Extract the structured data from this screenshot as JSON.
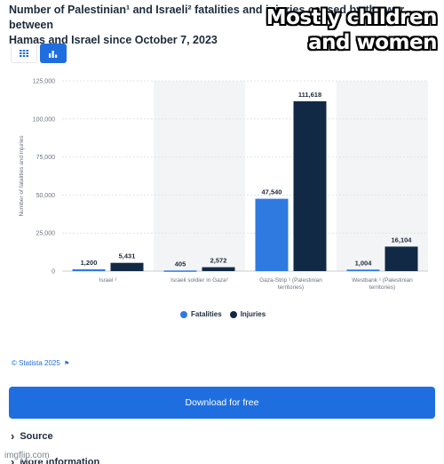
{
  "header": {
    "title_line1": "Number of Palestinian¹ and Israeli² fatalities and inju",
    "title_line1_tail": "ries caused by the war between",
    "title_line2": "Hamas and Israel since October 7, 2023",
    "meme_line1": "Mostly children",
    "meme_line2": "and women"
  },
  "view_toggle": {
    "table_icon": "grid-icon",
    "chart_icon": "bar-chart-icon",
    "active": "chart"
  },
  "legend": {
    "fatalities": "Fatalities",
    "injuries": "Injuries"
  },
  "credit": {
    "text": "© Statista 2025",
    "icon": "flag-icon"
  },
  "actions": {
    "download": "Download for free",
    "source": "Source",
    "more": "More information"
  },
  "watermark": "imgflip.com",
  "chart_data": {
    "type": "bar",
    "categories": [
      [
        "Israel ²"
      ],
      [
        "Israeli soldier in Gaza²"
      ],
      [
        "Gaza-Strip ¹ (Palestinian",
        "territories)"
      ],
      [
        "Westbank ¹ (Palestinian",
        "territories)"
      ]
    ],
    "series": [
      {
        "name": "Fatalities",
        "color": "#2f7ae0",
        "values": [
          1200,
          405,
          47540,
          1004
        ],
        "labels": [
          "1,200",
          "405",
          "47,540",
          "1,004"
        ]
      },
      {
        "name": "Injuries",
        "color": "#122945",
        "values": [
          5431,
          2572,
          111618,
          16104
        ],
        "labels": [
          "5,431",
          "2,572",
          "111,618",
          "16,104"
        ]
      }
    ],
    "ylabel": "Number of fatalities and injuries",
    "ylim": [
      0,
      125000
    ],
    "yticks": [
      0,
      25000,
      50000,
      75000,
      100000,
      125000
    ],
    "ytick_labels": [
      "0",
      "25,000",
      "50,000",
      "75,000",
      "100,000",
      "125,000"
    ],
    "grid": true,
    "legend_position": "bottom-center",
    "shaded_categories": [
      1,
      3
    ]
  }
}
